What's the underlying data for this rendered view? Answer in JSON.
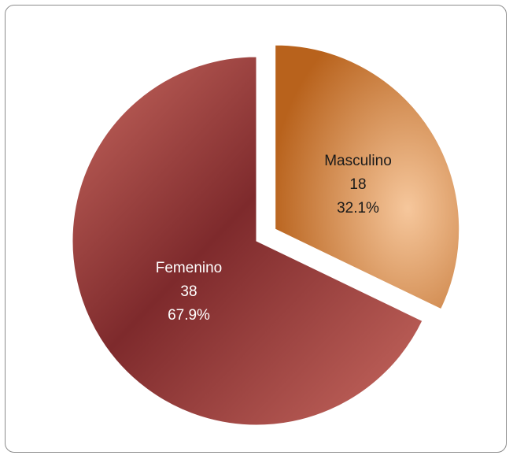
{
  "chart_data": {
    "type": "pie",
    "title": "",
    "exploded": "Masculino",
    "slices": [
      {
        "label": "Masculino",
        "value": 18,
        "percent_label": "32.1%",
        "color_dark": "#b8621c",
        "color_light": "#f6c79c",
        "text_color": "#1a1a1a"
      },
      {
        "label": "Femenino",
        "value": 38,
        "percent_label": "67.9%",
        "color_dark": "#7e2a2c",
        "color_light": "#c7685f",
        "text_color": "#ffffff"
      }
    ]
  }
}
